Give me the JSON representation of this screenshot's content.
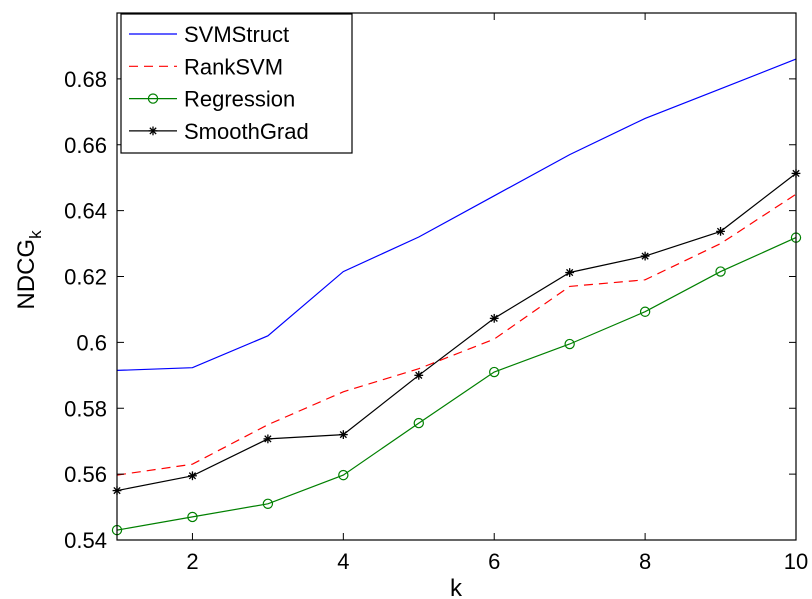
{
  "chart_data": {
    "type": "line",
    "xlabel": "k",
    "ylabel": {
      "main": "NDCG",
      "subscript": "k"
    },
    "xlim": [
      1,
      10
    ],
    "ylim": [
      0.54,
      0.7
    ],
    "xticks": [
      2,
      4,
      6,
      8,
      10
    ],
    "xtick_labels": [
      "2",
      "4",
      "6",
      "8",
      "10"
    ],
    "yticks": [
      0.54,
      0.56,
      0.58,
      0.6,
      0.62,
      0.64,
      0.66,
      0.68
    ],
    "ytick_labels": [
      "0.54",
      "0.56",
      "0.58",
      "0.6",
      "0.62",
      "0.64",
      "0.66",
      "0.68"
    ],
    "grid": false,
    "legend_position": "top-left",
    "x": [
      1,
      2,
      3,
      4,
      5,
      6,
      7,
      8,
      9,
      10
    ],
    "series": [
      {
        "name": "SVMStruct",
        "color": "#0000ff",
        "line_style": "solid",
        "marker": "none",
        "values": [
          0.5915,
          0.5923,
          0.602,
          0.6215,
          0.632,
          0.6445,
          0.657,
          0.668,
          0.677,
          0.686
        ]
      },
      {
        "name": "RankSVM",
        "color": "#ff0000",
        "line_style": "dashed",
        "marker": "none",
        "values": [
          0.5597,
          0.563,
          0.575,
          0.585,
          0.592,
          0.601,
          0.617,
          0.619,
          0.63,
          0.645
        ]
      },
      {
        "name": "Regression",
        "color": "#008000",
        "line_style": "solid",
        "marker": "circle",
        "values": [
          0.543,
          0.547,
          0.551,
          0.5597,
          0.5755,
          0.591,
          0.5995,
          0.6093,
          0.6215,
          0.6318
        ]
      },
      {
        "name": "SmoothGrad",
        "color": "#000000",
        "line_style": "solid",
        "marker": "asterisk",
        "values": [
          0.555,
          0.5595,
          0.5707,
          0.572,
          0.59,
          0.6073,
          0.6212,
          0.6262,
          0.6337,
          0.6513
        ]
      }
    ]
  }
}
